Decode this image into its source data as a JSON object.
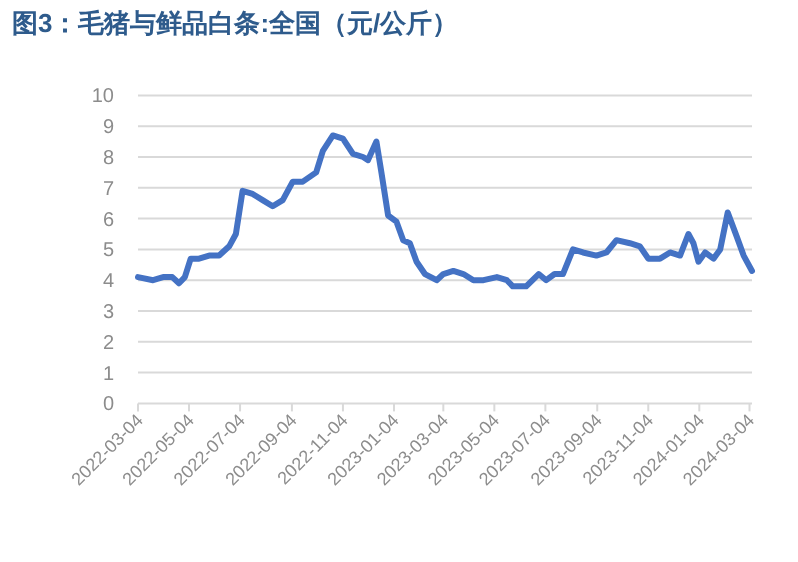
{
  "chart_data": {
    "type": "line",
    "title": "图3：毛猪与鲜品白条:全国（元/公斤）",
    "x": [
      "2022-03-04",
      "2022-03-22",
      "2022-04-03",
      "2022-04-14",
      "2022-04-22",
      "2022-04-29",
      "2022-05-06",
      "2022-05-16",
      "2022-05-28",
      "2022-06-09",
      "2022-06-21",
      "2022-06-29",
      "2022-07-07",
      "2022-07-19",
      "2022-07-31",
      "2022-08-12",
      "2022-08-24",
      "2022-09-05",
      "2022-09-17",
      "2022-10-03",
      "2022-10-11",
      "2022-10-23",
      "2022-11-04",
      "2022-11-16",
      "2022-11-28",
      "2022-12-04",
      "2022-12-14",
      "2022-12-20",
      "2022-12-28",
      "2023-01-07",
      "2023-01-15",
      "2023-01-23",
      "2023-01-31",
      "2023-02-10",
      "2023-02-24",
      "2023-03-04",
      "2023-03-16",
      "2023-03-28",
      "2023-04-09",
      "2023-04-21",
      "2023-05-07",
      "2023-05-19",
      "2023-05-26",
      "2023-06-11",
      "2023-06-26",
      "2023-07-05",
      "2023-07-15",
      "2023-07-25",
      "2023-08-06",
      "2023-08-18",
      "2023-09-03",
      "2023-09-15",
      "2023-09-27",
      "2023-10-13",
      "2023-10-25",
      "2023-11-04",
      "2023-11-18",
      "2023-11-30",
      "2023-12-12",
      "2023-12-22",
      "2023-12-28",
      "2024-01-03",
      "2024-01-11",
      "2024-01-21",
      "2024-01-29",
      "2024-02-07",
      "2024-02-18",
      "2024-02-26",
      "2024-03-07"
    ],
    "series": [
      {
        "color": "#4472c4",
        "values": [
          4.1,
          4.0,
          4.1,
          4.1,
          3.9,
          4.1,
          4.7,
          4.7,
          4.8,
          4.8,
          5.1,
          5.5,
          6.9,
          6.8,
          6.6,
          6.4,
          6.6,
          7.2,
          7.2,
          7.5,
          8.2,
          8.7,
          8.6,
          8.1,
          8.0,
          7.9,
          8.5,
          7.5,
          6.1,
          5.9,
          5.3,
          5.2,
          4.6,
          4.2,
          4.0,
          4.2,
          4.3,
          4.2,
          4.0,
          4.0,
          4.1,
          4.0,
          3.8,
          3.8,
          4.2,
          4.0,
          4.2,
          4.2,
          5.0,
          4.9,
          4.8,
          4.9,
          5.3,
          5.2,
          5.1,
          4.7,
          4.7,
          4.9,
          4.8,
          5.5,
          5.2,
          4.6,
          4.9,
          4.7,
          5.0,
          6.2,
          5.4,
          4.8,
          4.3
        ]
      }
    ],
    "xlim": [
      "2022-03-04",
      "2024-03-07"
    ],
    "xticks": [
      "2022-03-04",
      "2022-05-04",
      "2022-07-04",
      "2022-09-04",
      "2022-11-04",
      "2023-01-04",
      "2023-03-04",
      "2023-05-04",
      "2023-07-04",
      "2023-09-04",
      "2023-11-04",
      "2024-01-04",
      "2024-03-04"
    ],
    "ylim": [
      0,
      10
    ],
    "yticks": [
      0,
      1,
      2,
      3,
      4,
      5,
      6,
      7,
      8,
      9,
      10
    ],
    "grid": "y",
    "line_style": "solid",
    "marker": "none"
  }
}
